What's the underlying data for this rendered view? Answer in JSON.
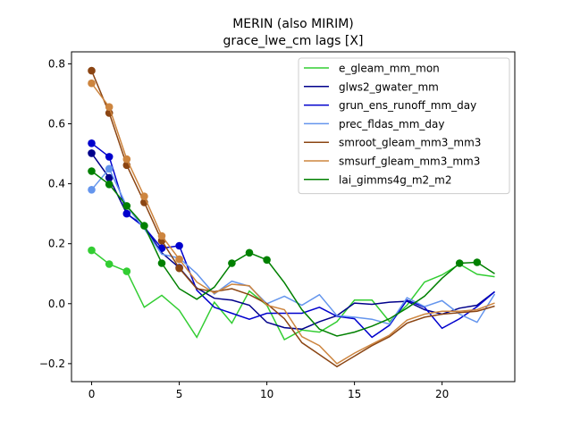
{
  "chart_data": {
    "type": "line",
    "title": "MERIN (also MIRIM)",
    "subtitle": "grace_lwe_cm lags [X]",
    "xlabel": "",
    "ylabel": "",
    "xlim": [
      -1.15,
      24.15
    ],
    "ylim": [
      -0.26,
      0.84
    ],
    "xticks": [
      0,
      5,
      10,
      15,
      20
    ],
    "yticks": [
      -0.2,
      0.0,
      0.2,
      0.4,
      0.6,
      0.8
    ],
    "ytick_labels": [
      "−0.2",
      "0.0",
      "0.2",
      "0.4",
      "0.6",
      "0.8"
    ],
    "grid": false,
    "legend": "top-right",
    "x": [
      0,
      1,
      2,
      3,
      4,
      5,
      6,
      7,
      8,
      9,
      10,
      11,
      12,
      13,
      14,
      15,
      16,
      17,
      18,
      19,
      20,
      21,
      22,
      23
    ],
    "series": [
      {
        "name": "e_gleam_mm_mon",
        "color": "#32cd32",
        "values": [
          0.178,
          0.132,
          0.108,
          -0.012,
          0.028,
          -0.022,
          -0.112,
          0.005,
          -0.065,
          0.042,
          -0.005,
          -0.12,
          -0.088,
          -0.095,
          -0.06,
          0.012,
          0.012,
          -0.06,
          -0.005,
          0.072,
          0.096,
          0.132,
          0.098,
          0.09
        ],
        "markers": [
          0,
          1,
          2
        ]
      },
      {
        "name": "glws2_gwater_mm",
        "color": "#00008b",
        "values": [
          0.502,
          0.42,
          0.3,
          0.258,
          0.17,
          0.12,
          0.052,
          0.018,
          0.012,
          -0.005,
          -0.062,
          -0.08,
          -0.085,
          -0.06,
          -0.04,
          0.002,
          -0.002,
          0.005,
          0.008,
          -0.02,
          -0.035,
          -0.015,
          -0.005,
          0.04
        ],
        "markers": [
          0,
          1,
          5
        ]
      },
      {
        "name": "grun_ens_runoff_mm_day",
        "color": "#0000cd",
        "values": [
          0.535,
          0.49,
          0.3,
          0.255,
          0.185,
          0.193,
          0.045,
          -0.012,
          -0.032,
          -0.052,
          -0.032,
          -0.032,
          -0.032,
          -0.012,
          -0.042,
          -0.05,
          -0.112,
          -0.072,
          0.012,
          -0.012,
          -0.082,
          -0.05,
          -0.01,
          0.04
        ],
        "markers": [
          0,
          1,
          2,
          4,
          5
        ]
      },
      {
        "name": "prec_fldas_mm_day",
        "color": "#6495ed",
        "values": [
          0.38,
          0.45,
          0.325,
          0.25,
          0.165,
          0.152,
          0.1,
          0.032,
          0.075,
          0.058,
          0.0,
          0.025,
          -0.005,
          0.03,
          -0.04,
          -0.045,
          -0.052,
          -0.068,
          0.02,
          -0.01,
          0.01,
          -0.035,
          -0.062,
          0.032
        ],
        "markers": [
          0,
          1
        ]
      },
      {
        "name": "smroot_gleam_mm3_mm3",
        "color": "#8b4513",
        "values": [
          0.777,
          0.636,
          0.462,
          0.338,
          0.21,
          0.118,
          0.05,
          0.04,
          0.05,
          0.03,
          0.0,
          -0.05,
          -0.13,
          -0.17,
          -0.21,
          -0.175,
          -0.14,
          -0.11,
          -0.065,
          -0.045,
          -0.035,
          -0.03,
          -0.025,
          -0.008
        ],
        "markers": [
          0,
          1,
          2,
          3,
          4,
          5
        ]
      },
      {
        "name": "smsurf_gleam_mm3_mm3",
        "color": "#cd853f",
        "values": [
          0.735,
          0.656,
          0.482,
          0.358,
          0.226,
          0.148,
          0.072,
          0.035,
          0.065,
          0.06,
          -0.005,
          -0.02,
          -0.11,
          -0.14,
          -0.2,
          -0.165,
          -0.135,
          -0.105,
          -0.055,
          -0.035,
          -0.025,
          -0.025,
          -0.02,
          0.002
        ],
        "markers": [
          0,
          1,
          2,
          3,
          4,
          5
        ]
      },
      {
        "name": "lai_gimms4g_m2_m2",
        "color": "#008000",
        "values": [
          0.442,
          0.398,
          0.326,
          0.26,
          0.135,
          0.05,
          0.015,
          0.055,
          0.135,
          0.17,
          0.146,
          0.07,
          -0.02,
          -0.085,
          -0.108,
          -0.095,
          -0.075,
          -0.05,
          -0.015,
          0.025,
          0.085,
          0.135,
          0.138,
          0.1
        ],
        "markers": [
          0,
          1,
          2,
          3,
          4,
          8,
          9,
          10,
          21,
          22
        ]
      }
    ]
  }
}
